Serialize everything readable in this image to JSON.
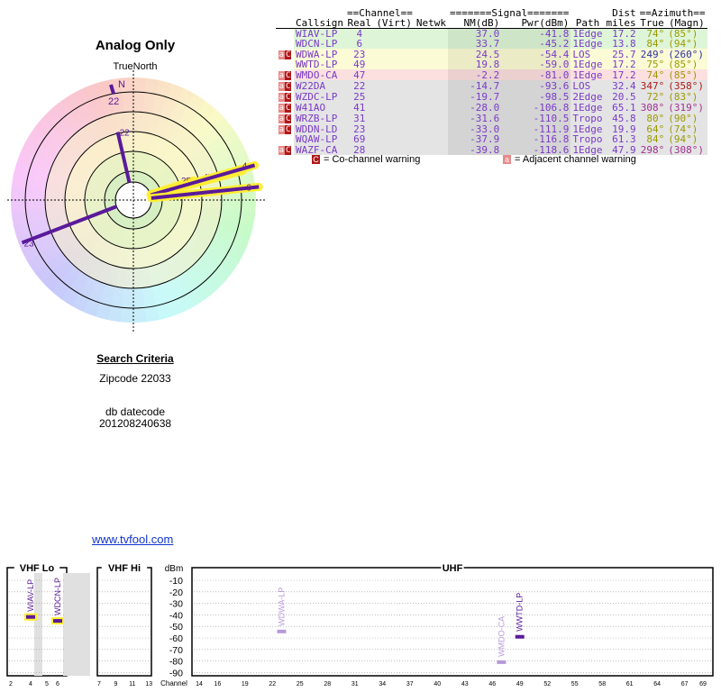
{
  "polar": {
    "title": "Analog Only",
    "north_label": "TrueNorth",
    "compass_letter": "N",
    "north_marker_channel": "22",
    "rays": [
      {
        "label": "22",
        "azimuth": 347,
        "nm_db": -14.7
      },
      {
        "label": "25",
        "azimuth": 72,
        "nm_db": -19.7
      },
      {
        "label": "47",
        "azimuth": 74,
        "nm_db": -2.2
      },
      {
        "label": "49",
        "azimuth": 75,
        "nm_db": 19.8
      },
      {
        "label": "4",
        "azimuth": 74,
        "nm_db": 37.0
      },
      {
        "label": "6",
        "azimuth": 84,
        "nm_db": 33.7
      },
      {
        "label": "23",
        "azimuth": 249,
        "nm_db": 24.5
      }
    ]
  },
  "search": {
    "title": "Search Criteria",
    "zipcode": "Zipcode 22033",
    "db_label": "db datecode",
    "db_value": "201208240638"
  },
  "link": "www.tvfool.com",
  "table": {
    "group_channel": "==Channel==",
    "group_signal": "=======Signal=======",
    "group_dist": "Dist",
    "group_azimuth": "==Azimuth==",
    "headers": [
      "Callsign",
      "Real",
      "(Virt)",
      "Netwk",
      "NM(dB)",
      "Pwr(dBm)",
      "Path",
      "miles",
      "True",
      "(Magn)"
    ],
    "rows": [
      {
        "flag": "",
        "callsign": "WIAV-LP",
        "real": "4",
        "virt": "",
        "netwk": "",
        "nm": "37.0",
        "pwr": "-41.8",
        "path": "1Edge",
        "dist": "17.2",
        "true": "74°",
        "magn": "(85°)",
        "bg": "#dff5d8",
        "tcolor": "#9a9a00"
      },
      {
        "flag": "",
        "callsign": "WDCN-LP",
        "real": "6",
        "virt": "",
        "netwk": "",
        "nm": "33.7",
        "pwr": "-45.2",
        "path": "1Edge",
        "dist": "13.8",
        "true": "84°",
        "magn": "(94°)",
        "bg": "#dff5d8",
        "tcolor": "#9a9a00"
      },
      {
        "flag": "aC",
        "callsign": "WDWA-LP",
        "real": "23",
        "virt": "",
        "netwk": "",
        "nm": "24.5",
        "pwr": "-54.4",
        "path": "LOS",
        "dist": "25.7",
        "true": "249°",
        "magn": "(260°)",
        "bg": "#fbfbd6",
        "tcolor": "#3030a0"
      },
      {
        "flag": "",
        "callsign": "WWTD-LP",
        "real": "49",
        "virt": "",
        "netwk": "",
        "nm": "19.8",
        "pwr": "-59.0",
        "path": "1Edge",
        "dist": "17.2",
        "true": "75°",
        "magn": "(85°)",
        "bg": "#fbfbd6",
        "tcolor": "#9a9a00"
      },
      {
        "flag": "aC",
        "callsign": "WMDO-CA",
        "real": "47",
        "virt": "",
        "netwk": "",
        "nm": "-2.2",
        "pwr": "-81.0",
        "path": "1Edge",
        "dist": "17.2",
        "true": "74°",
        "magn": "(85°)",
        "bg": "#fbe0e0",
        "tcolor": "#9a9a00"
      },
      {
        "flag": "aC",
        "callsign": "W22DA",
        "real": "22",
        "virt": "",
        "netwk": "",
        "nm": "-14.7",
        "pwr": "-93.6",
        "path": "LOS",
        "dist": "32.4",
        "true": "347°",
        "magn": "(358°)",
        "bg": "#e4e4e4",
        "tcolor": "#b01818"
      },
      {
        "flag": "aC",
        "callsign": "WZDC-LP",
        "real": "25",
        "virt": "",
        "netwk": "",
        "nm": "-19.7",
        "pwr": "-98.5",
        "path": "2Edge",
        "dist": "20.5",
        "true": "72°",
        "magn": "(83°)",
        "bg": "#e4e4e4",
        "tcolor": "#9a9a00"
      },
      {
        "flag": "aC",
        "callsign": "W41AO",
        "real": "41",
        "virt": "",
        "netwk": "",
        "nm": "-28.0",
        "pwr": "-106.8",
        "path": "1Edge",
        "dist": "65.1",
        "true": "308°",
        "magn": "(319°)",
        "bg": "#e4e4e4",
        "tcolor": "#a03090"
      },
      {
        "flag": "aC",
        "callsign": "WRZB-LP",
        "real": "31",
        "virt": "",
        "netwk": "",
        "nm": "-31.6",
        "pwr": "-110.5",
        "path": "Tropo",
        "dist": "45.8",
        "true": "80°",
        "magn": "(90°)",
        "bg": "#e4e4e4",
        "tcolor": "#9a9a00"
      },
      {
        "flag": "aC",
        "callsign": "WDDN-LD",
        "real": "23",
        "virt": "",
        "netwk": "",
        "nm": "-33.0",
        "pwr": "-111.9",
        "path": "1Edge",
        "dist": "19.9",
        "true": "64°",
        "magn": "(74°)",
        "bg": "#e4e4e4",
        "tcolor": "#9a9a00"
      },
      {
        "flag": "",
        "callsign": "WQAW-LP",
        "real": "69",
        "virt": "",
        "netwk": "",
        "nm": "-37.9",
        "pwr": "-116.8",
        "path": "Tropo",
        "dist": "61.3",
        "true": "84°",
        "magn": "(94°)",
        "bg": "#e4e4e4",
        "tcolor": "#9a9a00"
      },
      {
        "flag": "aC",
        "callsign": "WAZF-CA",
        "real": "28",
        "virt": "",
        "netwk": "",
        "nm": "-39.8",
        "pwr": "-118.6",
        "path": "1Edge",
        "dist": "47.9",
        "true": "298°",
        "magn": "(308°)",
        "bg": "#e4e4e4",
        "tcolor": "#a03090"
      }
    ]
  },
  "legend": {
    "cochannel_box": "C",
    "cochannel_text": "= Co-channel warning",
    "adjacent_box": "a",
    "adjacent_text": "= Adjacent channel warning",
    "cochannel_color": "#b01818",
    "adjacent_color": "#e98888"
  },
  "spectrum": {
    "section_labels": [
      "VHF Lo",
      "VHF Hi",
      "UHF"
    ],
    "dbm_label": "dBm",
    "channel_label": "Channel",
    "dbm_ticks": [
      "-10",
      "-20",
      "-30",
      "-40",
      "-50",
      "-60",
      "-70",
      "-80",
      "-90"
    ],
    "vhf_lo_ticks": [
      "2",
      "4",
      "5",
      "6"
    ],
    "vhf_hi_ticks": [
      "7",
      "9",
      "11",
      "13"
    ],
    "uhf_ticks": [
      "14",
      "16",
      "19",
      "22",
      "25",
      "28",
      "31",
      "34",
      "37",
      "40",
      "43",
      "46",
      "49",
      "52",
      "55",
      "58",
      "61",
      "64",
      "67",
      "69"
    ],
    "stations": [
      {
        "label": "WIAV-LP",
        "channel": 4,
        "dbm": -41.8,
        "color": "#5a1a9a"
      },
      {
        "label": "WDCN-LP",
        "channel": 6,
        "dbm": -45.2,
        "color": "#5a1a9a"
      },
      {
        "label": "WDWA-LP",
        "channel": 23,
        "dbm": -54.4,
        "color": "#b79ad8"
      },
      {
        "label": "WMDO-CA",
        "channel": 47,
        "dbm": -81.0,
        "color": "#b79ad8"
      },
      {
        "label": "WWTD-LP",
        "channel": 49,
        "dbm": -59.0,
        "color": "#5a1a9a"
      }
    ]
  }
}
